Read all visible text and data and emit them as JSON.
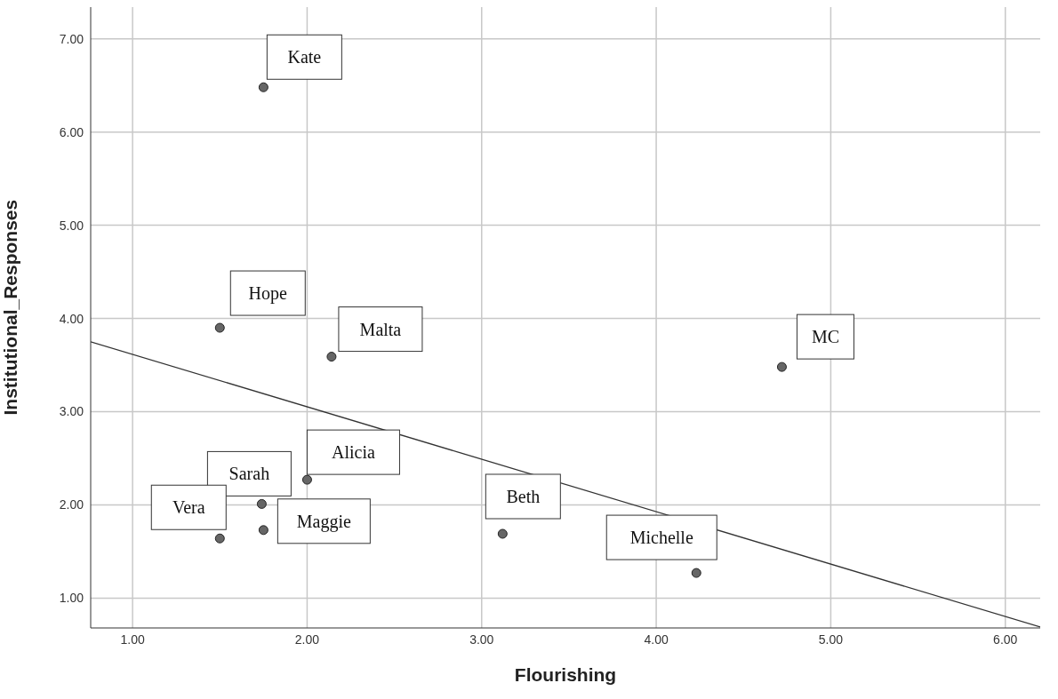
{
  "chart_data": {
    "type": "scatter",
    "xlabel": "Flourishing",
    "ylabel": "Institutional_Responses",
    "xlim": [
      0.76,
      6.2
    ],
    "ylim": [
      0.68,
      7.34
    ],
    "xticks": [
      {
        "value": 1,
        "label": "1.00"
      },
      {
        "value": 2,
        "label": "2.00"
      },
      {
        "value": 3,
        "label": "3.00"
      },
      {
        "value": 4,
        "label": "4.00"
      },
      {
        "value": 5,
        "label": "5.00"
      },
      {
        "value": 6,
        "label": "6.00"
      }
    ],
    "yticks": [
      {
        "value": 1,
        "label": "1.00"
      },
      {
        "value": 2,
        "label": "2.00"
      },
      {
        "value": 3,
        "label": "3.00"
      },
      {
        "value": 4,
        "label": "4.00"
      },
      {
        "value": 5,
        "label": "5.00"
      },
      {
        "value": 6,
        "label": "6.00"
      },
      {
        "value": 7,
        "label": "7.00"
      }
    ],
    "grid": true,
    "legend": false,
    "marker": "circle",
    "series": [
      {
        "color": "#666666",
        "x": [
          1.75,
          1.5,
          2.14,
          4.72,
          2.0,
          1.74,
          1.5,
          1.75,
          3.12,
          4.23
        ],
        "values": [
          6.48,
          3.9,
          3.59,
          3.48,
          2.27,
          2.01,
          1.64,
          1.73,
          1.69,
          1.27
        ]
      },
      {
        "type": "line",
        "color": "#333333",
        "line_style": "solid",
        "marker": "none",
        "x": [
          0.76,
          6.2
        ],
        "values": [
          3.75,
          0.69
        ]
      }
    ],
    "annotations": [
      {
        "text": "Kate",
        "x": 1.75,
        "y": 6.48
      },
      {
        "text": "Hope",
        "x": 1.5,
        "y": 3.9
      },
      {
        "text": "Malta",
        "x": 2.14,
        "y": 3.59
      },
      {
        "text": "MC",
        "x": 4.72,
        "y": 3.48
      },
      {
        "text": "Alicia",
        "x": 2.0,
        "y": 2.27
      },
      {
        "text": "Sarah",
        "x": 1.74,
        "y": 2.01
      },
      {
        "text": "Vera",
        "x": 1.5,
        "y": 1.64
      },
      {
        "text": "Maggie",
        "x": 1.75,
        "y": 1.73
      },
      {
        "text": "Beth",
        "x": 3.12,
        "y": 1.69
      },
      {
        "text": "Michelle",
        "x": 4.23,
        "y": 1.27
      }
    ]
  }
}
